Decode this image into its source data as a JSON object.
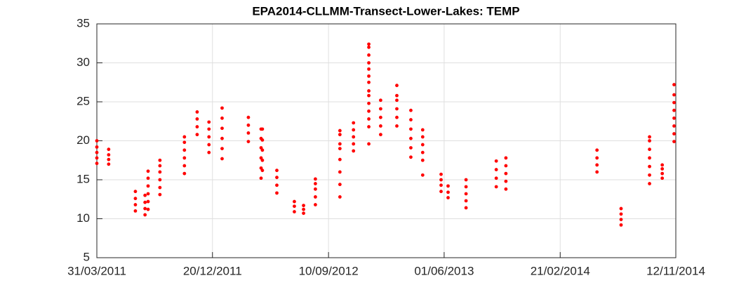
{
  "chart_data": {
    "type": "scatter",
    "title": "EPA2014-CLLMM-Transect-Lower-Lakes: TEMP",
    "color": "#ff0000",
    "grid": true,
    "xlim": [
      "31/03/2011",
      "12/11/2014"
    ],
    "xticks": [
      "31/03/2011",
      "20/12/2011",
      "10/09/2012",
      "01/06/2013",
      "21/02/2014",
      "12/11/2014"
    ],
    "ylim": [
      5,
      35
    ],
    "yticks": [
      5,
      10,
      15,
      20,
      25,
      30,
      35
    ],
    "x": [
      "31/03/2011",
      "31/03/2011",
      "31/03/2011",
      "31/03/2011",
      "31/03/2011",
      "27/04/2011",
      "27/04/2011",
      "27/04/2011",
      "27/04/2011",
      "27/06/2011",
      "27/06/2011",
      "27/06/2011",
      "27/06/2011",
      "19/07/2011",
      "19/07/2011",
      "19/07/2011",
      "19/07/2011",
      "26/07/2011",
      "26/07/2011",
      "26/07/2011",
      "26/07/2011",
      "26/07/2011",
      "26/07/2011",
      "22/08/2011",
      "22/08/2011",
      "22/08/2011",
      "22/08/2011",
      "22/08/2011",
      "22/08/2011",
      "17/10/2011",
      "17/10/2011",
      "17/10/2011",
      "17/10/2011",
      "17/10/2011",
      "17/10/2011",
      "15/11/2011",
      "15/11/2011",
      "15/11/2011",
      "15/11/2011",
      "12/12/2011",
      "12/12/2011",
      "12/12/2011",
      "12/12/2011",
      "12/12/2011",
      "11/01/2012",
      "11/01/2012",
      "11/01/2012",
      "11/01/2012",
      "11/01/2012",
      "11/01/2012",
      "11/03/2012",
      "11/03/2012",
      "11/03/2012",
      "11/03/2012",
      "09/04/2012",
      "09/04/2012",
      "09/04/2012",
      "09/04/2012",
      "09/04/2012",
      "09/04/2012",
      "12/04/2012",
      "12/04/2012",
      "12/04/2012",
      "12/04/2012",
      "12/04/2012",
      "15/05/2012",
      "15/05/2012",
      "15/05/2012",
      "15/05/2012",
      "24/06/2012",
      "24/06/2012",
      "24/06/2012",
      "15/07/2012",
      "15/07/2012",
      "15/07/2012",
      "11/08/2012",
      "11/08/2012",
      "11/08/2012",
      "11/08/2012",
      "11/08/2012",
      "06/10/2012",
      "06/10/2012",
      "06/10/2012",
      "06/10/2012",
      "06/10/2012",
      "06/10/2012",
      "06/10/2012",
      "06/10/2012",
      "06/11/2012",
      "06/11/2012",
      "06/11/2012",
      "06/11/2012",
      "06/11/2012",
      "11/12/2012",
      "11/12/2012",
      "11/12/2012",
      "11/12/2012",
      "11/12/2012",
      "11/12/2012",
      "11/12/2012",
      "11/12/2012",
      "11/12/2012",
      "11/12/2012",
      "11/12/2012",
      "11/12/2012",
      "11/12/2012",
      "11/12/2012",
      "07/01/2013",
      "07/01/2013",
      "07/01/2013",
      "07/01/2013",
      "07/01/2013",
      "13/02/2013",
      "13/02/2013",
      "13/02/2013",
      "13/02/2013",
      "13/02/2013",
      "13/02/2013",
      "17/03/2013",
      "17/03/2013",
      "17/03/2013",
      "17/03/2013",
      "17/03/2013",
      "17/03/2013",
      "13/04/2013",
      "13/04/2013",
      "13/04/2013",
      "13/04/2013",
      "13/04/2013",
      "13/04/2013",
      "25/05/2013",
      "25/05/2013",
      "25/05/2013",
      "25/05/2013",
      "10/06/2013",
      "10/06/2013",
      "10/06/2013",
      "21/07/2013",
      "21/07/2013",
      "21/07/2013",
      "21/07/2013",
      "21/07/2013",
      "28/09/2013",
      "28/09/2013",
      "28/09/2013",
      "28/09/2013",
      "20/10/2013",
      "20/10/2013",
      "20/10/2013",
      "20/10/2013",
      "20/10/2013",
      "16/05/2014",
      "16/05/2014",
      "16/05/2014",
      "16/05/2014",
      "10/07/2014",
      "10/07/2014",
      "10/07/2014",
      "10/07/2014",
      "13/09/2014",
      "13/09/2014",
      "13/09/2014",
      "13/09/2014",
      "13/09/2014",
      "13/09/2014",
      "13/09/2014",
      "12/10/2014",
      "12/10/2014",
      "12/10/2014",
      "12/10/2014",
      "08/11/2014",
      "08/11/2014",
      "08/11/2014",
      "08/11/2014",
      "08/11/2014",
      "08/11/2014",
      "08/11/2014",
      "08/11/2014"
    ],
    "values": [
      17.1,
      17.8,
      18.5,
      19.2,
      20.0,
      17.0,
      17.6,
      18.2,
      18.9,
      11.0,
      11.8,
      12.6,
      13.5,
      10.5,
      11.3,
      12.1,
      13.0,
      11.2,
      12.2,
      13.2,
      14.2,
      15.2,
      16.1,
      13.1,
      14.0,
      15.0,
      16.0,
      16.8,
      17.5,
      15.8,
      16.8,
      17.8,
      18.8,
      19.8,
      20.5,
      20.8,
      21.8,
      22.8,
      23.7,
      18.5,
      19.5,
      20.5,
      21.5,
      22.4,
      17.7,
      19.0,
      20.3,
      21.6,
      22.9,
      24.2,
      19.9,
      21.0,
      22.0,
      23.0,
      15.2,
      16.5,
      17.8,
      19.1,
      20.3,
      21.5,
      16.2,
      17.5,
      18.8,
      20.1,
      21.5,
      13.3,
      14.3,
      15.3,
      16.2,
      10.9,
      11.6,
      12.2,
      10.7,
      11.2,
      11.7,
      11.8,
      12.8,
      13.8,
      14.5,
      15.1,
      12.8,
      14.4,
      16.0,
      17.6,
      19.0,
      19.6,
      20.8,
      21.3,
      18.7,
      19.6,
      20.5,
      21.4,
      22.3,
      19.6,
      21.8,
      22.8,
      23.8,
      24.8,
      25.8,
      26.4,
      27.5,
      28.3,
      29.2,
      30.0,
      31.0,
      32.0,
      32.4,
      20.8,
      21.9,
      23.0,
      24.1,
      25.2,
      21.9,
      23.0,
      24.1,
      25.2,
      25.8,
      27.1,
      17.9,
      19.1,
      20.3,
      21.5,
      22.7,
      23.9,
      15.6,
      17.5,
      18.5,
      19.5,
      20.5,
      21.4,
      13.5,
      14.3,
      15.0,
      15.7,
      12.7,
      13.4,
      14.2,
      11.4,
      12.3,
      13.2,
      14.1,
      15.0,
      14.1,
      15.2,
      16.3,
      17.4,
      13.8,
      14.8,
      15.8,
      16.8,
      17.8,
      16.0,
      16.9,
      17.8,
      18.8,
      9.2,
      9.9,
      10.6,
      11.3,
      14.5,
      15.6,
      16.7,
      17.8,
      18.9,
      20.0,
      20.5,
      15.2,
      15.8,
      16.4,
      16.9,
      19.9,
      20.9,
      21.9,
      22.9,
      23.9,
      24.9,
      25.9,
      27.2
    ]
  }
}
